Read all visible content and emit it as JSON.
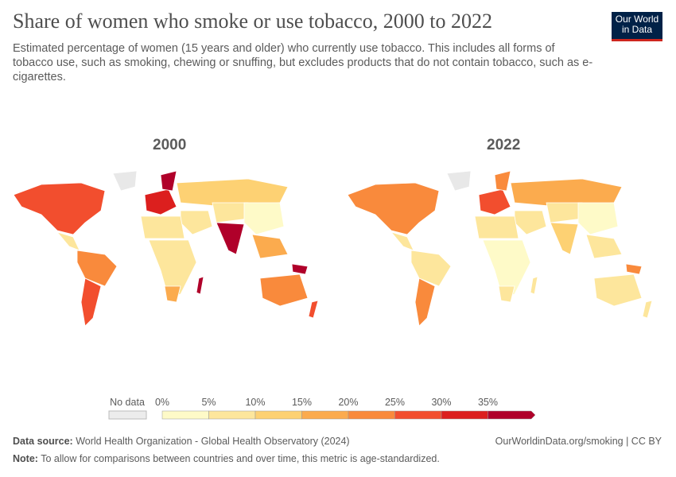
{
  "header": {
    "title": "Share of women who smoke or use tobacco, 2000 to 2022",
    "subtitle": "Estimated percentage of women (15 years and older) who currently use tobacco. This includes all forms of tobacco use, such as smoking, chewing or snuffing, but excludes products that do not contain tobacco, such as e-cigarettes.",
    "logo": "Our World in Data"
  },
  "maps": [
    {
      "year": "2000"
    },
    {
      "year": "2022"
    }
  ],
  "chart_data": {
    "type": "choropleth",
    "title": "Share of women who smoke or use tobacco, 2000 to 2022",
    "unit": "%",
    "panels": [
      "2000",
      "2022"
    ],
    "legend": {
      "no_data_label": "No data",
      "ticks": [
        "0%",
        "5%",
        "10%",
        "15%",
        "20%",
        "25%",
        "30%",
        "35%"
      ],
      "bins": [
        0,
        5,
        10,
        15,
        20,
        25,
        30,
        35
      ],
      "colors": [
        "#fefac8",
        "#fde69c",
        "#fdd173",
        "#fbab4e",
        "#f98a3c",
        "#f24e2e",
        "#dc1f1e",
        "#b0002a"
      ],
      "no_data_color": "#e8e8e8"
    }
  },
  "footer": {
    "source_label": "Data source:",
    "source": "World Health Organization - Global Health Observatory (2024)",
    "url": "OurWorldinData.org/smoking | CC BY",
    "note_label": "Note:",
    "note": "To allow for comparisons between countries and over time, this metric is age-standardized."
  }
}
